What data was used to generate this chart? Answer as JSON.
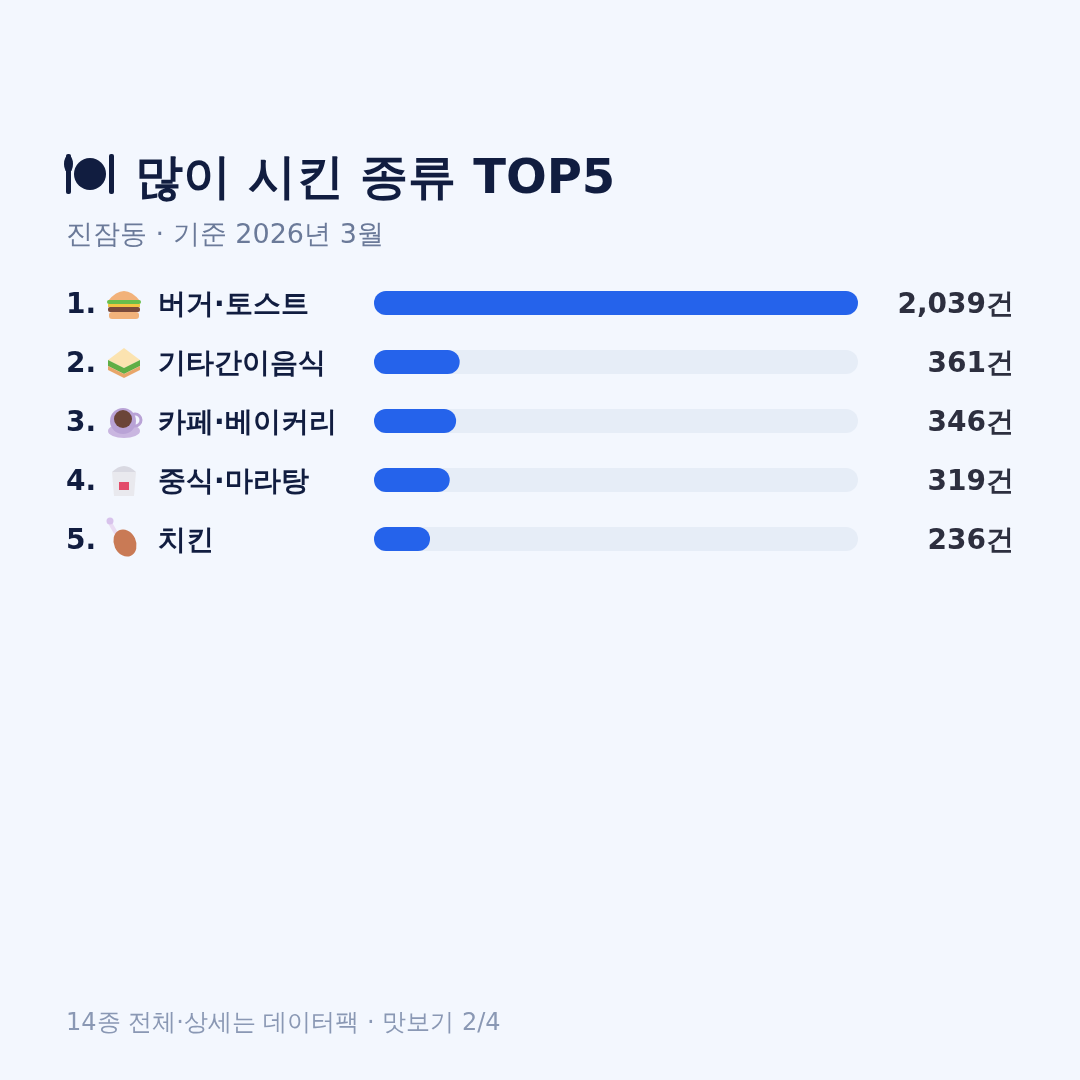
{
  "chart_data": {
    "type": "bar",
    "orientation": "horizontal",
    "title": "많이 시킨 종류 TOP5",
    "subtitle": "진잠동 · 기준 2026년 3월",
    "categories": [
      "1. 버거·토스트",
      "2. 기타간이음식",
      "3. 카페·베이커리",
      "4. 중식·마라탕",
      "5. 치킨"
    ],
    "values": [
      2039,
      361,
      346,
      319,
      236
    ],
    "value_labels": [
      "2,039건",
      "361건",
      "346건",
      "319건",
      "236건"
    ],
    "color": "#2563eb",
    "xlim": [
      0,
      2039
    ],
    "annotations": [
      "14종 전체·상세는 데이터팩 · 맛보기 2/4"
    ]
  }
}
